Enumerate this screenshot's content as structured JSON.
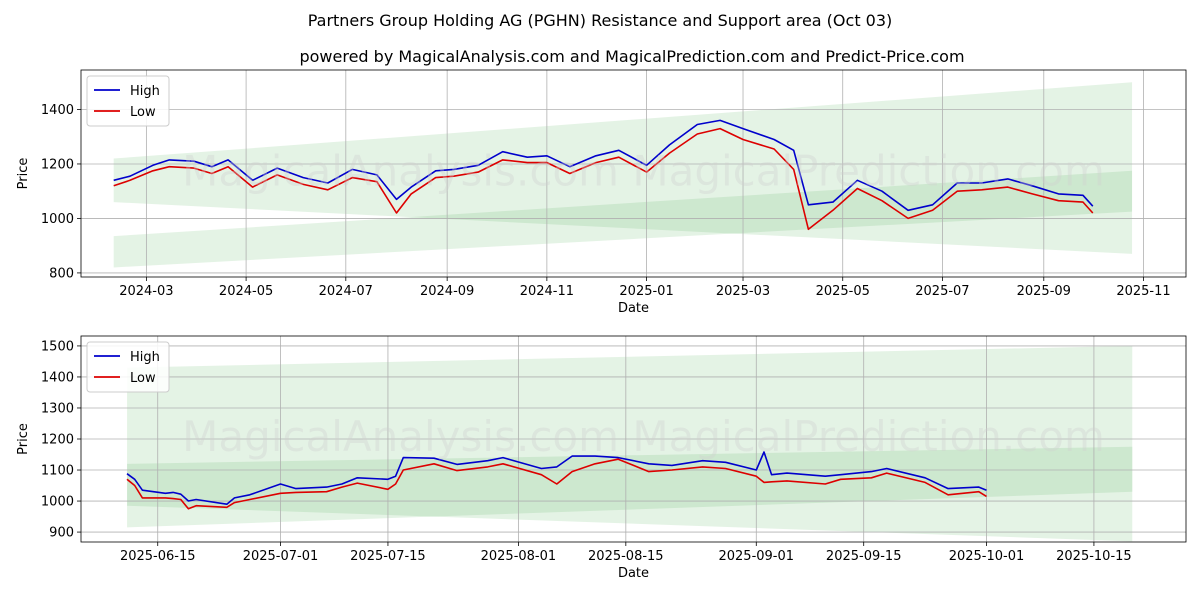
{
  "page": {
    "title": "Partners Group Holding AG (PGHN) Resistance and Support area (Oct 03)",
    "subtitle": "powered by MagicalAnalysis.com and MagicalPrediction.com and Predict-Price.com",
    "watermarks": [
      "MagicalAnalysis.com",
      "MagicalPrediction.com"
    ]
  },
  "colors": {
    "high": "#0000cc",
    "low": "#dd0000",
    "band": "#4caf50"
  },
  "chart_data": [
    {
      "type": "line",
      "xlabel": "Date",
      "ylabel": "Price",
      "x_is_dates": true,
      "xlim": [
        "2024-01-21",
        "2025-11-27"
      ],
      "ylim": [
        785,
        1545
      ],
      "xticks": [
        "2024-03-01",
        "2024-05-01",
        "2024-07-01",
        "2024-09-01",
        "2024-11-01",
        "2025-01-01",
        "2025-03-01",
        "2025-05-01",
        "2025-07-01",
        "2025-09-01",
        "2025-11-01"
      ],
      "xtick_labels": [
        "2024-03",
        "2024-05",
        "2024-07",
        "2024-09",
        "2024-11",
        "2025-01",
        "2025-03",
        "2025-05",
        "2025-07",
        "2025-09",
        "2025-11"
      ],
      "yticks": [
        800,
        1000,
        1200,
        1400
      ],
      "legend": {
        "position": "upper-left",
        "entries": [
          "High",
          "Low"
        ]
      },
      "bands": [
        {
          "name": "upper-area",
          "x": [
            "2024-02-10",
            "2025-10-25"
          ],
          "top": [
            1220,
            1500
          ],
          "bottom": [
            1060,
            870
          ]
        },
        {
          "name": "lower-area",
          "x": [
            "2024-02-10",
            "2025-10-25"
          ],
          "top": [
            935,
            1175
          ],
          "bottom": [
            820,
            1025
          ]
        }
      ],
      "series": [
        {
          "name": "High",
          "x": [
            "2024-02-10",
            "2024-02-20",
            "2024-03-05",
            "2024-03-15",
            "2024-03-30",
            "2024-04-10",
            "2024-04-20",
            "2024-05-05",
            "2024-05-20",
            "2024-06-05",
            "2024-06-20",
            "2024-07-05",
            "2024-07-20",
            "2024-08-01",
            "2024-08-10",
            "2024-08-25",
            "2024-09-05",
            "2024-09-20",
            "2024-10-05",
            "2024-10-20",
            "2024-11-01",
            "2024-11-15",
            "2024-12-01",
            "2024-12-15",
            "2025-01-01",
            "2025-01-15",
            "2025-02-01",
            "2025-02-15",
            "2025-03-01",
            "2025-03-20",
            "2025-04-01",
            "2025-04-10",
            "2025-04-25",
            "2025-05-10",
            "2025-05-25",
            "2025-06-10",
            "2025-06-25",
            "2025-07-10",
            "2025-07-25",
            "2025-08-10",
            "2025-08-25",
            "2025-09-10",
            "2025-09-25",
            "2025-10-01"
          ],
          "values": [
            1140,
            1155,
            1195,
            1215,
            1210,
            1190,
            1215,
            1140,
            1185,
            1150,
            1130,
            1180,
            1160,
            1070,
            1115,
            1175,
            1180,
            1195,
            1245,
            1225,
            1230,
            1190,
            1230,
            1250,
            1195,
            1270,
            1345,
            1360,
            1330,
            1290,
            1250,
            1050,
            1060,
            1140,
            1100,
            1030,
            1050,
            1130,
            1130,
            1145,
            1120,
            1090,
            1085,
            1045
          ]
        },
        {
          "name": "Low",
          "x": [
            "2024-02-10",
            "2024-02-20",
            "2024-03-05",
            "2024-03-15",
            "2024-03-30",
            "2024-04-10",
            "2024-04-20",
            "2024-05-05",
            "2024-05-20",
            "2024-06-05",
            "2024-06-20",
            "2024-07-05",
            "2024-07-20",
            "2024-08-01",
            "2024-08-10",
            "2024-08-25",
            "2024-09-05",
            "2024-09-20",
            "2024-10-05",
            "2024-10-20",
            "2024-11-01",
            "2024-11-15",
            "2024-12-01",
            "2024-12-15",
            "2025-01-01",
            "2025-01-15",
            "2025-02-01",
            "2025-02-15",
            "2025-03-01",
            "2025-03-20",
            "2025-04-01",
            "2025-04-10",
            "2025-04-25",
            "2025-05-10",
            "2025-05-25",
            "2025-06-10",
            "2025-06-25",
            "2025-07-10",
            "2025-07-25",
            "2025-08-10",
            "2025-08-25",
            "2025-09-10",
            "2025-09-25",
            "2025-10-01"
          ],
          "values": [
            1120,
            1140,
            1175,
            1190,
            1185,
            1165,
            1190,
            1115,
            1160,
            1125,
            1105,
            1150,
            1135,
            1020,
            1090,
            1150,
            1155,
            1170,
            1215,
            1205,
            1205,
            1165,
            1205,
            1225,
            1170,
            1240,
            1310,
            1330,
            1290,
            1255,
            1180,
            960,
            1030,
            1110,
            1065,
            1000,
            1030,
            1100,
            1105,
            1115,
            1090,
            1065,
            1060,
            1020
          ]
        }
      ]
    },
    {
      "type": "line",
      "xlabel": "Date",
      "ylabel": "Price",
      "x_is_dates": true,
      "xlim": [
        "2025-06-05",
        "2025-10-27"
      ],
      "ylim": [
        868,
        1532
      ],
      "xticks": [
        "2025-06-15",
        "2025-07-01",
        "2025-07-15",
        "2025-08-01",
        "2025-08-15",
        "2025-09-01",
        "2025-09-15",
        "2025-10-01",
        "2025-10-15"
      ],
      "xtick_labels": [
        "2025-06-15",
        "2025-07-01",
        "2025-07-15",
        "2025-08-01",
        "2025-08-15",
        "2025-09-01",
        "2025-09-15",
        "2025-10-01",
        "2025-10-15"
      ],
      "yticks": [
        900,
        1000,
        1100,
        1200,
        1300,
        1400,
        1500
      ],
      "legend": {
        "position": "upper-left",
        "entries": [
          "High",
          "Low"
        ]
      },
      "bands": [
        {
          "name": "upper-area",
          "x": [
            "2025-06-11",
            "2025-10-20"
          ],
          "top": [
            1430,
            1500
          ],
          "bottom": [
            985,
            870
          ]
        },
        {
          "name": "lower-area",
          "x": [
            "2025-06-11",
            "2025-10-20"
          ],
          "top": [
            1120,
            1175
          ],
          "bottom": [
            915,
            1030
          ]
        }
      ],
      "series": [
        {
          "name": "High",
          "x": [
            "2025-06-11",
            "2025-06-12",
            "2025-06-13",
            "2025-06-16",
            "2025-06-17",
            "2025-06-18",
            "2025-06-19",
            "2025-06-20",
            "2025-06-24",
            "2025-06-25",
            "2025-06-27",
            "2025-07-01",
            "2025-07-03",
            "2025-07-07",
            "2025-07-09",
            "2025-07-11",
            "2025-07-15",
            "2025-07-16",
            "2025-07-17",
            "2025-07-21",
            "2025-07-24",
            "2025-07-28",
            "2025-07-30",
            "2025-08-04",
            "2025-08-06",
            "2025-08-08",
            "2025-08-11",
            "2025-08-14",
            "2025-08-18",
            "2025-08-21",
            "2025-08-25",
            "2025-08-28",
            "2025-09-01",
            "2025-09-02",
            "2025-09-03",
            "2025-09-05",
            "2025-09-10",
            "2025-09-12",
            "2025-09-16",
            "2025-09-18",
            "2025-09-23",
            "2025-09-26",
            "2025-09-30",
            "2025-10-01"
          ],
          "values": [
            1088,
            1070,
            1035,
            1025,
            1028,
            1022,
            1000,
            1005,
            990,
            1010,
            1020,
            1055,
            1040,
            1045,
            1055,
            1075,
            1070,
            1080,
            1140,
            1138,
            1118,
            1130,
            1140,
            1105,
            1110,
            1145,
            1145,
            1140,
            1120,
            1115,
            1130,
            1125,
            1100,
            1158,
            1085,
            1090,
            1080,
            1085,
            1095,
            1105,
            1075,
            1040,
            1045,
            1035
          ]
        },
        {
          "name": "Low",
          "x": [
            "2025-06-11",
            "2025-06-12",
            "2025-06-13",
            "2025-06-16",
            "2025-06-17",
            "2025-06-18",
            "2025-06-19",
            "2025-06-20",
            "2025-06-24",
            "2025-06-25",
            "2025-06-27",
            "2025-07-01",
            "2025-07-03",
            "2025-07-07",
            "2025-07-09",
            "2025-07-11",
            "2025-07-15",
            "2025-07-16",
            "2025-07-17",
            "2025-07-21",
            "2025-07-24",
            "2025-07-28",
            "2025-07-30",
            "2025-08-04",
            "2025-08-06",
            "2025-08-08",
            "2025-08-11",
            "2025-08-14",
            "2025-08-18",
            "2025-08-21",
            "2025-08-25",
            "2025-08-28",
            "2025-09-01",
            "2025-09-02",
            "2025-09-03",
            "2025-09-05",
            "2025-09-10",
            "2025-09-12",
            "2025-09-16",
            "2025-09-18",
            "2025-09-23",
            "2025-09-26",
            "2025-09-30",
            "2025-10-01"
          ],
          "values": [
            1070,
            1050,
            1010,
            1010,
            1008,
            1005,
            975,
            985,
            980,
            995,
            1005,
            1025,
            1028,
            1030,
            1045,
            1058,
            1038,
            1055,
            1100,
            1120,
            1098,
            1110,
            1120,
            1085,
            1055,
            1095,
            1120,
            1135,
            1095,
            1100,
            1110,
            1105,
            1080,
            1060,
            1062,
            1065,
            1055,
            1070,
            1075,
            1090,
            1060,
            1020,
            1030,
            1015
          ]
        }
      ]
    }
  ]
}
